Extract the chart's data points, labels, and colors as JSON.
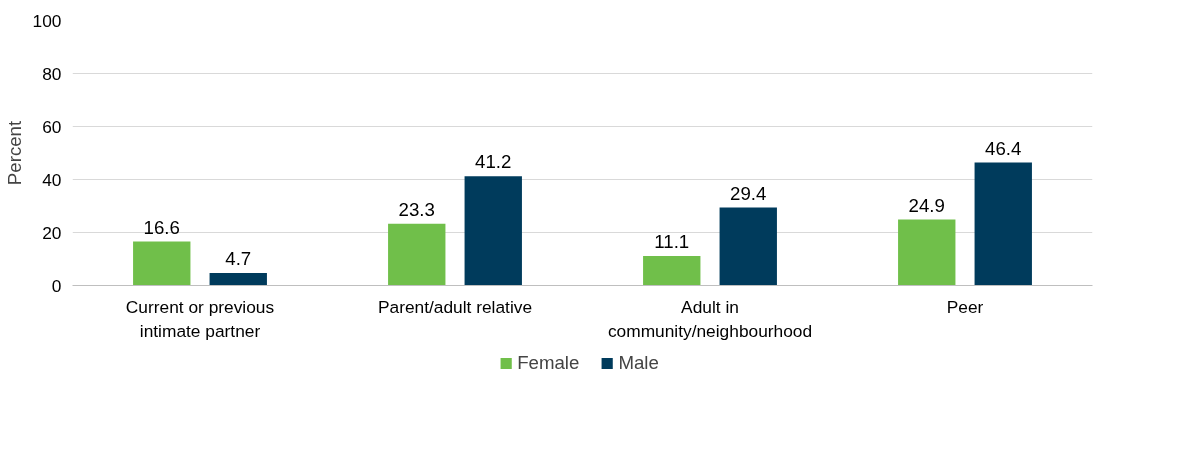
{
  "chart_data": {
    "type": "bar",
    "ylabel": "Percent",
    "categories": [
      "Current or previous intimate partner",
      "Parent/adult relative",
      "Adult in community/neighbourhood",
      "Peer"
    ],
    "series": [
      {
        "name": "Female",
        "color": "#70bf4a",
        "values": [
          16.6,
          23.3,
          11.1,
          24.9
        ]
      },
      {
        "name": "Male",
        "color": "#003b5c",
        "values": [
          4.7,
          41.2,
          29.4,
          46.4
        ]
      }
    ],
    "ylim": [
      0,
      100
    ],
    "yticks": [
      0,
      20,
      40,
      60,
      80,
      100
    ],
    "grid": "y",
    "legend": "bottom",
    "data_labels": true
  }
}
